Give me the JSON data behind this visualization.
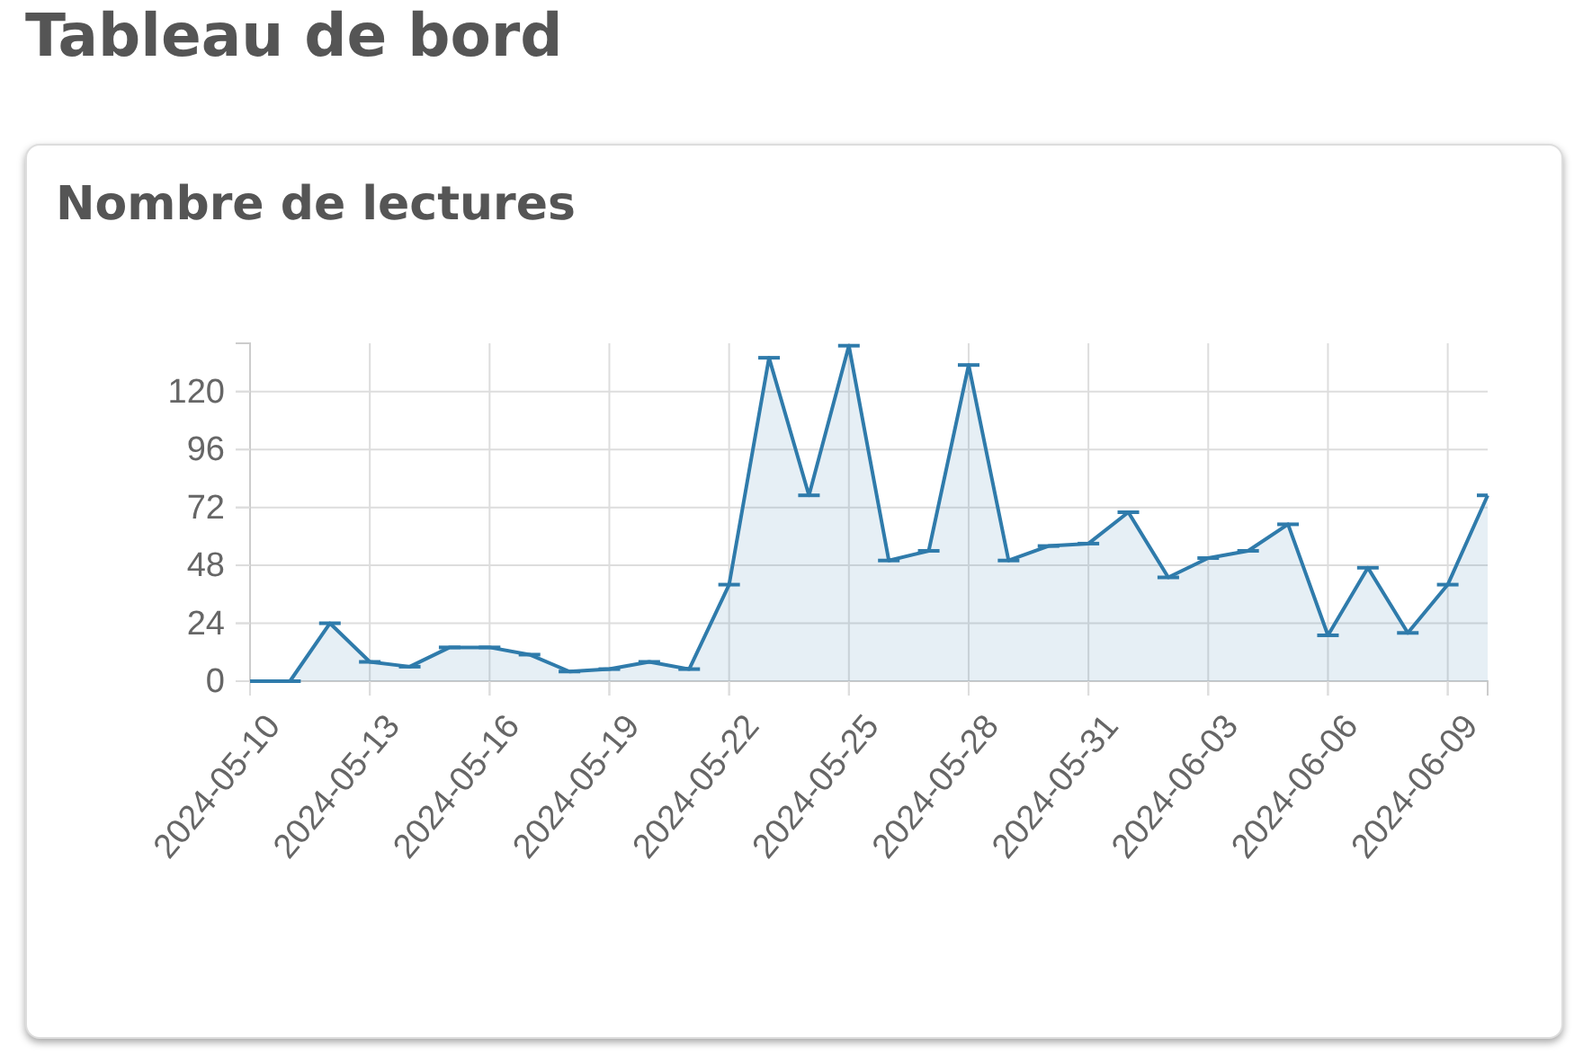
{
  "chart_data": {
    "type": "area",
    "title": "Tableau de bord",
    "subtitle": "Nombre de lectures",
    "x": [
      "2024-05-10",
      "2024-05-11",
      "2024-05-12",
      "2024-05-13",
      "2024-05-14",
      "2024-05-15",
      "2024-05-16",
      "2024-05-17",
      "2024-05-18",
      "2024-05-19",
      "2024-05-20",
      "2024-05-21",
      "2024-05-22",
      "2024-05-23",
      "2024-05-24",
      "2024-05-25",
      "2024-05-26",
      "2024-05-27",
      "2024-05-28",
      "2024-05-29",
      "2024-05-30",
      "2024-05-31",
      "2024-06-01",
      "2024-06-02",
      "2024-06-03",
      "2024-06-04",
      "2024-06-05",
      "2024-06-06",
      "2024-06-07",
      "2024-06-08",
      "2024-06-09",
      "2024-06-10"
    ],
    "series": [
      {
        "color": "#2f7bab",
        "values": [
          0,
          0,
          24,
          8,
          6,
          14,
          14,
          11,
          4,
          5,
          8,
          5,
          40,
          134,
          77,
          139,
          50,
          54,
          131,
          50,
          56,
          57,
          70,
          43,
          51,
          54,
          65,
          19,
          47,
          20,
          40,
          77
        ]
      }
    ],
    "xlim": [
      "2024-05-10",
      "2024-06-10"
    ],
    "xticks": [
      "2024-05-10",
      "2024-05-13",
      "2024-05-16",
      "2024-05-19",
      "2024-05-22",
      "2024-05-25",
      "2024-05-28",
      "2024-05-31",
      "2024-06-03",
      "2024-06-06",
      "2024-06-09"
    ],
    "ylim": [
      0,
      140
    ],
    "yticks": [
      0,
      24,
      48,
      72,
      96,
      120
    ],
    "grid": true
  }
}
